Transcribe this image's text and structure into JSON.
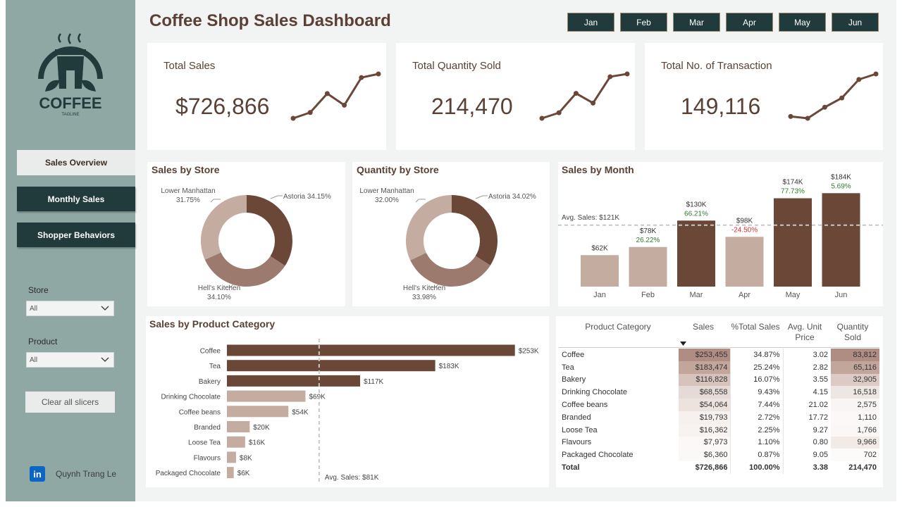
{
  "title": "Coffee Shop Sales Dashboard",
  "logo": {
    "brand": "COFFEE",
    "tagline": "TAGLINE"
  },
  "nav": {
    "overview": "Sales Overview",
    "monthly": "Monthly Sales",
    "shopper": "Shopper Behaviors"
  },
  "filters": {
    "store_label": "Store",
    "store_value": "All",
    "product_label": "Product",
    "product_value": "All",
    "clear": "Clear all slicers"
  },
  "author": "Quynh Trang Le",
  "linkedin_icon": "in",
  "months": [
    "Jan",
    "Feb",
    "Mar",
    "Apr",
    "May",
    "Jun"
  ],
  "kpis": [
    {
      "label": "Total Sales",
      "value": "$726,866",
      "trend": [
        62,
        78,
        130,
        98,
        174,
        184
      ]
    },
    {
      "label": "Total Quantity Sold",
      "value": "214,470",
      "trend": [
        18,
        22,
        36,
        29,
        48,
        50
      ]
    },
    {
      "label": "Total No. of Transaction",
      "value": "149,116",
      "trend": [
        17,
        16,
        22,
        27,
        37,
        40
      ]
    }
  ],
  "sales_by_store": {
    "title": "Sales by Store",
    "slices": [
      {
        "store": "Astoria",
        "pct": 34.15,
        "label": "Astoria 34.15%",
        "color": "#6b4738"
      },
      {
        "store": "Hell's Kitchen",
        "pct": 34.1,
        "label1": "Hell's Kitchen",
        "label2": "34.10%",
        "color": "#9c7b6e"
      },
      {
        "store": "Lower Manhattan",
        "pct": 31.75,
        "label1": "Lower Manhattan",
        "label2": "31.75%",
        "color": "#c4aca1"
      }
    ]
  },
  "qty_by_store": {
    "title": "Quantity by Store",
    "slices": [
      {
        "store": "Astoria",
        "pct": 34.02,
        "label": "Astoria 34.02%",
        "color": "#6b4738"
      },
      {
        "store": "Hell's Kitchen",
        "pct": 33.98,
        "label1": "Hell's Kitchen",
        "label2": "33.98%",
        "color": "#9c7b6e"
      },
      {
        "store": "Lower Manhattan",
        "pct": 32.0,
        "label1": "Lower Manhattan",
        "label2": "32.00%",
        "color": "#c4aca1"
      }
    ]
  },
  "chart_data": [
    {
      "type": "bar",
      "title": "Sales by Month",
      "categories": [
        "Jan",
        "Feb",
        "Mar",
        "Apr",
        "May",
        "Jun"
      ],
      "values": [
        62,
        78,
        130,
        98,
        174,
        184
      ],
      "value_labels": [
        "$62K",
        "$78K",
        "$130K",
        "$98K",
        "$174K",
        "$184K"
      ],
      "mom_labels": [
        "",
        "26.22%",
        "66.21%",
        "-24.50%",
        "77.73%",
        "5.69%"
      ],
      "mom_colors": [
        "",
        "#2e7d32",
        "#2e7d32",
        "#d32f2f",
        "#2e7d32",
        "#2e7d32"
      ],
      "bar_colors": [
        "#c4aca1",
        "#c4aca1",
        "#6b4738",
        "#c4aca1",
        "#6b4738",
        "#6b4738"
      ],
      "avg_value": 121,
      "avg_label": "Avg. Sales: $121K",
      "ylim": [
        0,
        190
      ]
    },
    {
      "type": "bar",
      "orientation": "horizontal",
      "title": "Sales by Product Category",
      "categories": [
        "Coffee",
        "Tea",
        "Bakery",
        "Drinking Chocolate",
        "Coffee beans",
        "Branded",
        "Loose Tea",
        "Flavours",
        "Packaged Chocolate"
      ],
      "values": [
        253,
        183,
        117,
        69,
        54,
        20,
        16,
        8,
        6
      ],
      "value_labels": [
        "$253K",
        "$183K",
        "$117K",
        "$69K",
        "$54K",
        "$20K",
        "$16K",
        "$8K",
        "$6K"
      ],
      "bar_colors": [
        "#6b4738",
        "#6b4738",
        "#6b4738",
        "#c4aca1",
        "#c4aca1",
        "#c4aca1",
        "#c4aca1",
        "#c4aca1",
        "#c4aca1"
      ],
      "avg_value": 81,
      "avg_label": "Avg. Sales: $81K",
      "xlim": [
        0,
        260
      ]
    }
  ],
  "table": {
    "headers": {
      "category": "Product Category",
      "sales": "Sales",
      "pct": "%Total Sales",
      "price1": "Avg. Unit",
      "price2": "Price",
      "qty1": "Quantity",
      "qty2": "Sold"
    },
    "sort_icon": "sort-descending-icon",
    "rows": [
      [
        "Coffee",
        "$253,455",
        "34.87%",
        "3.02",
        "83,812"
      ],
      [
        "Tea",
        "$183,474",
        "25.24%",
        "2.82",
        "65,116"
      ],
      [
        "Bakery",
        "$116,828",
        "16.07%",
        "3.55",
        "32,905"
      ],
      [
        "Drinking Chocolate",
        "$68,558",
        "9.43%",
        "4.15",
        "16,518"
      ],
      [
        "Coffee beans",
        "$54,064",
        "7.44%",
        "21.02",
        "2,575"
      ],
      [
        "Branded",
        "$19,793",
        "2.72%",
        "17.72",
        "1,110"
      ],
      [
        "Loose Tea",
        "$16,362",
        "2.25%",
        "9.27",
        "1,766"
      ],
      [
        "Flavours",
        "$7,973",
        "1.10%",
        "0.80",
        "9,966"
      ],
      [
        "Packaged Chocolate",
        "$6,360",
        "0.87%",
        "9.05",
        "702"
      ]
    ],
    "sales_shades": [
      "#b08d82",
      "#c2a59b",
      "#d6c3bc",
      "#e6dad6",
      "#ece3df",
      "#f6f1ef",
      "#f7f3f1",
      "#fbf8f7",
      "#fbf9f8"
    ],
    "qty_shades": [
      "#b08d82",
      "#c2a59b",
      "#dccbc5",
      "#eee6e3",
      "#f8f5f4",
      "#fbf9f8",
      "#faf7f6",
      "#f1eae7",
      "#fcfbfa"
    ],
    "total": [
      "Total",
      "$726,866",
      "100.00%",
      "3.38",
      "214,470"
    ]
  }
}
